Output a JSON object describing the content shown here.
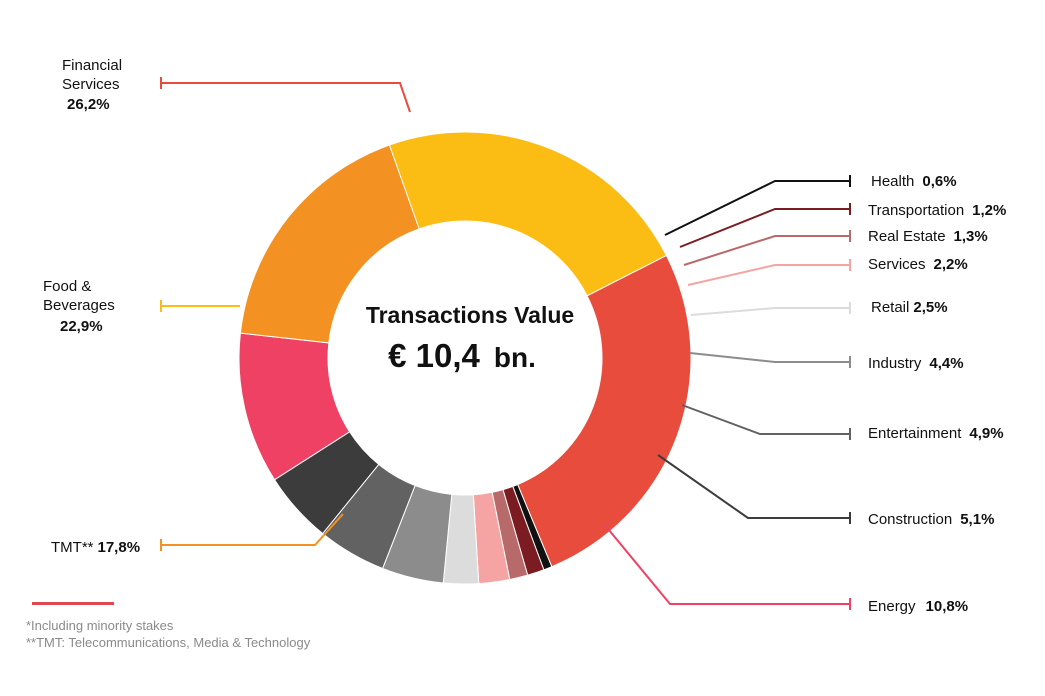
{
  "chart_data": {
    "type": "pie",
    "variant": "donut",
    "title": "Transactions Value",
    "center_value": "€ 10,4",
    "center_unit": "bn.",
    "slices": [
      {
        "name_lines": [
          "Financial",
          "Services"
        ],
        "value_label": "26,2%",
        "value": 26.2,
        "color": "#e84c3d"
      },
      {
        "name_lines": [
          "Health"
        ],
        "value_label": "0,6%",
        "value": 0.6,
        "color": "#111111"
      },
      {
        "name_lines": [
          "Transportation"
        ],
        "value_label": "1,2%",
        "value": 1.2,
        "color": "#7b1c22"
      },
      {
        "name_lines": [
          "Real Estate"
        ],
        "value_label": "1,3%",
        "value": 1.3,
        "color": "#b86a6a"
      },
      {
        "name_lines": [
          "Services"
        ],
        "value_label": "2,2%",
        "value": 2.2,
        "color": "#f5a3a3"
      },
      {
        "name_lines": [
          "Retail"
        ],
        "value_label": "2,5%",
        "value": 2.5,
        "color": "#dcdcdc"
      },
      {
        "name_lines": [
          "Industry"
        ],
        "value_label": "4,4%",
        "value": 4.4,
        "color": "#8c8c8c"
      },
      {
        "name_lines": [
          "Entertainment"
        ],
        "value_label": "4,9%",
        "value": 4.9,
        "color": "#626262"
      },
      {
        "name_lines": [
          "Construction"
        ],
        "value_label": "5,1%",
        "value": 5.1,
        "color": "#3c3c3c"
      },
      {
        "name_lines": [
          "Energy"
        ],
        "value_label": "10,8%",
        "value": 10.8,
        "color": "#ee4163"
      },
      {
        "name_lines": [
          "TMT**"
        ],
        "value_label": "17,8%",
        "value": 17.8,
        "color": "#f39223"
      },
      {
        "name_lines": [
          "Food &",
          "Beverages"
        ],
        "value_label": "22,9%",
        "value": 22.9,
        "color": "#fbbd13"
      }
    ]
  },
  "footnotes": [
    "*Including minority stakes",
    "**TMT: Telecommunications, Media & Technology"
  ],
  "accent_color": "#e0484f"
}
